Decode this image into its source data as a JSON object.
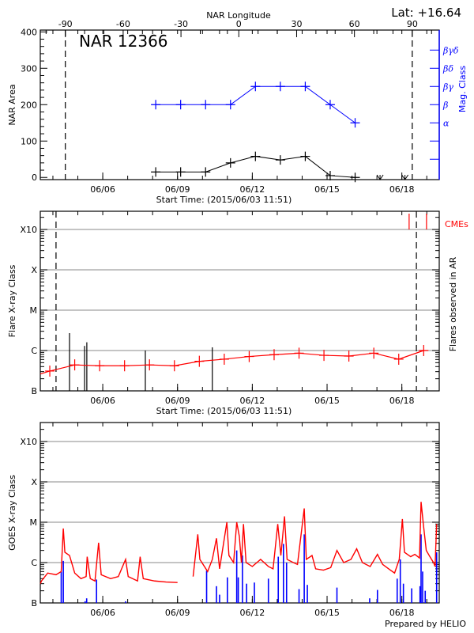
{
  "footer": "Prepared by HELIO",
  "colors": {
    "axis": "#000000",
    "mag_class": "#0000ff",
    "flare": "#ff0000",
    "goes_long": "#ff0000",
    "goes_short": "#0000ff",
    "grid": "#a0a0a0"
  },
  "chart_data": [
    {
      "type": "line",
      "title": "NAR 12366",
      "annotation": "Lat: +16.64",
      "xlabel": "Start Time: (2015/06/03 11:51)",
      "xlim": [
        "2015-06-03T11:51",
        "2015-06-19T12:00"
      ],
      "xticks": [
        {
          "date": "2015-06-06T00:00",
          "label": "06/06"
        },
        {
          "date": "2015-06-09T00:00",
          "label": "06/09"
        },
        {
          "date": "2015-06-12T00:00",
          "label": "06/12"
        },
        {
          "date": "2015-06-15T00:00",
          "label": "06/15"
        },
        {
          "date": "2015-06-18T00:00",
          "label": "06/18"
        }
      ],
      "top_xlabel": "NAR Longitude",
      "top_xlim": [
        -103,
        104
      ],
      "top_xticks": [
        "-90",
        "-60",
        "-30",
        "0",
        "30",
        "60",
        "90"
      ],
      "limb_longitudes": [
        -90,
        90
      ],
      "ylabel": "NAR Area",
      "ylim": [
        -6,
        405
      ],
      "yticks": [
        "0",
        "100",
        "200",
        "300",
        "400"
      ],
      "y2label": "Mag. Class",
      "y2ticks": [
        {
          "at": 50,
          "label": ""
        },
        {
          "at": 100,
          "label": ""
        },
        {
          "at": 150,
          "label": "α"
        },
        {
          "at": 200,
          "label": "β"
        },
        {
          "at": 250,
          "label": "βγ"
        },
        {
          "at": 300,
          "label": "βδ"
        },
        {
          "at": 350,
          "label": "βγδ"
        }
      ],
      "area": {
        "x": [
          "2015-06-08T03:00",
          "2015-06-09T03:00",
          "2015-06-10T03:00",
          "2015-06-11T03:00",
          "2015-06-12T03:00",
          "2015-06-13T03:00",
          "2015-06-14T03:00",
          "2015-06-15T03:00",
          "2015-06-16T03:00"
        ],
        "values": [
          15,
          15,
          15,
          40,
          58,
          48,
          58,
          5,
          0
        ],
        "no_data_markers": [
          "2015-06-17T03:00",
          "2015-06-18T03:00"
        ]
      },
      "mag_class": {
        "x": [
          "2015-06-08T03:00",
          "2015-06-09T03:00",
          "2015-06-10T03:00",
          "2015-06-11T03:00",
          "2015-06-12T03:00",
          "2015-06-13T03:00",
          "2015-06-14T03:00",
          "2015-06-15T03:00",
          "2015-06-16T03:00"
        ],
        "values": [
          "β",
          "β",
          "β",
          "β",
          "βγ",
          "βγ",
          "βγ",
          "β",
          "α"
        ]
      }
    },
    {
      "type": "line",
      "xlabel": "Start Time: (2015/06/03 11:51)",
      "xlim": [
        "2015-06-03T11:51",
        "2015-06-19T12:00"
      ],
      "xticks": [
        {
          "date": "2015-06-06T00:00",
          "label": "06/06"
        },
        {
          "date": "2015-06-09T00:00",
          "label": "06/09"
        },
        {
          "date": "2015-06-12T00:00",
          "label": "06/12"
        },
        {
          "date": "2015-06-15T00:00",
          "label": "06/15"
        },
        {
          "date": "2015-06-18T00:00",
          "label": "06/18"
        }
      ],
      "ylabel": "Flare X-ray Class",
      "y2label": "Flares observed in AR",
      "yscale": "log",
      "ylim": [
        "B1.0",
        "X29"
      ],
      "yticks": [
        "B",
        "C",
        "M",
        "X",
        "X10"
      ],
      "grid": true,
      "limb_dates": [
        "2015-06-04T03:00",
        "2015-06-18T14:00"
      ],
      "background_level": {
        "x": [
          "2015-06-03T21:00",
          "2015-06-04T21:00",
          "2015-06-05T21:00",
          "2015-06-06T21:00",
          "2015-06-07T21:00",
          "2015-06-08T21:00",
          "2015-06-09T21:00",
          "2015-06-10T21:00",
          "2015-06-11T21:00",
          "2015-06-12T21:00",
          "2015-06-13T21:00",
          "2015-06-14T21:00",
          "2015-06-15T21:00",
          "2015-06-16T21:00",
          "2015-06-17T21:00",
          "2015-06-18T21:00"
        ],
        "values": [
          "B3.1",
          "B4.4",
          "B4.2",
          "B4.2",
          "B4.4",
          "B4.2",
          "B5.4",
          "B6.1",
          "B7.1",
          "B7.9",
          "B8.6",
          "B7.6",
          "B7.3",
          "B8.6",
          "B6.1",
          "C1.0"
        ]
      },
      "flares": [
        {
          "date": "2015-06-04T16:00",
          "class": "C2.7"
        },
        {
          "date": "2015-06-05T06:30",
          "class": "C1.3"
        },
        {
          "date": "2015-06-05T08:40",
          "class": "C1.6"
        },
        {
          "date": "2015-06-07T17:00",
          "class": "C1.0"
        },
        {
          "date": "2015-06-10T09:30",
          "class": "C1.2"
        }
      ],
      "cme_label": "CMEs",
      "cmes": [
        "2015-06-18T07:00",
        "2015-06-18T23:45"
      ]
    },
    {
      "type": "line",
      "xlim": [
        "2015-06-03T11:51",
        "2015-06-19T12:00"
      ],
      "xticks": [
        {
          "date": "2015-06-06T00:00",
          "label": "06/06"
        },
        {
          "date": "2015-06-09T00:00",
          "label": "06/09"
        },
        {
          "date": "2015-06-12T00:00",
          "label": "06/12"
        },
        {
          "date": "2015-06-15T00:00",
          "label": "06/15"
        },
        {
          "date": "2015-06-18T00:00",
          "label": "06/18"
        }
      ],
      "ylabel": "GOES X-ray Class",
      "yscale": "log",
      "ylim": [
        "B1.0",
        "X29"
      ],
      "yticks": [
        "B",
        "C",
        "M",
        "X",
        "X10"
      ],
      "grid": true,
      "long_channel": [
        [
          "2015-06-03T12:00",
          "B3.0"
        ],
        [
          "2015-06-03T13:00",
          "B3.5"
        ],
        [
          "2015-06-03T19:00",
          "B5.5"
        ],
        [
          "2015-06-04T03:00",
          "B5.0"
        ],
        [
          "2015-06-04T08:00",
          "B6.0"
        ],
        [
          "2015-06-04T10:00",
          "C7.0"
        ],
        [
          "2015-06-04T11:30",
          "C1.8"
        ],
        [
          "2015-06-04T16:00",
          "C1.5"
        ],
        [
          "2015-06-04T21:00",
          "B5.5"
        ],
        [
          "2015-06-05T03:00",
          "B4.0"
        ],
        [
          "2015-06-05T08:00",
          "B4.5"
        ],
        [
          "2015-06-05T09:00",
          "C1.4"
        ],
        [
          "2015-06-05T12:00",
          "B4.0"
        ],
        [
          "2015-06-05T16:30",
          "B3.5"
        ],
        [
          "2015-06-05T20:00",
          "C3.1"
        ],
        [
          "2015-06-05T22:30",
          "B5.0"
        ],
        [
          "2015-06-06T07:30",
          "B4.0"
        ],
        [
          "2015-06-06T15:00",
          "B4.5"
        ],
        [
          "2015-06-06T22:00",
          "C1.2"
        ],
        [
          "2015-06-07T00:30",
          "B4.5"
        ],
        [
          "2015-06-07T09:30",
          "B3.5"
        ],
        [
          "2015-06-07T12:00",
          "C1.4"
        ],
        [
          "2015-06-07T15:00",
          "B4.0"
        ],
        [
          "2015-06-08T02:00",
          "B3.5"
        ],
        [
          "2015-06-08T13:00",
          "B3.3"
        ],
        [
          "2015-06-09T00:00",
          "B3.2"
        ],
        [
          "2015-06-09T07:00",
          null
        ],
        [
          "2015-06-09T15:00",
          "B4.5"
        ],
        [
          "2015-06-09T19:30",
          "C5.0"
        ],
        [
          "2015-06-09T21:30",
          "C1.2"
        ],
        [
          "2015-06-10T05:00",
          "B6.0"
        ],
        [
          "2015-06-10T09:30",
          "C1.2"
        ],
        [
          "2015-06-10T13:30",
          "C4.0"
        ],
        [
          "2015-06-10T16:30",
          "B7.0"
        ],
        [
          "2015-06-10T23:30",
          "M1.0"
        ],
        [
          "2015-06-11T01:30",
          "C1.5"
        ],
        [
          "2015-06-11T06:00",
          "C1.0"
        ],
        [
          "2015-06-11T09:00",
          "M1.0"
        ],
        [
          "2015-06-11T11:30",
          "C4.5"
        ],
        [
          "2015-06-11T13:30",
          "C1.0"
        ],
        [
          "2015-06-11T15:30",
          "C9.0"
        ],
        [
          "2015-06-11T18:00",
          "C1.0"
        ],
        [
          "2015-06-12T00:00",
          "B8.0"
        ],
        [
          "2015-06-12T08:00",
          "C1.2"
        ],
        [
          "2015-06-12T15:30",
          "B8.0"
        ],
        [
          "2015-06-12T20:00",
          "B7.0"
        ],
        [
          "2015-06-13T00:30",
          "C9.0"
        ],
        [
          "2015-06-13T03:30",
          "C1.5"
        ],
        [
          "2015-06-13T07:00",
          "M1.4"
        ],
        [
          "2015-06-13T09:30",
          "C1.2"
        ],
        [
          "2015-06-13T15:30",
          "C1.0"
        ],
        [
          "2015-06-13T19:30",
          "B9.0"
        ],
        [
          "2015-06-14T02:00",
          "M2.2"
        ],
        [
          "2015-06-14T04:00",
          "C1.2"
        ],
        [
          "2015-06-14T09:30",
          "C1.5"
        ],
        [
          "2015-06-14T13:00",
          "B7.0"
        ],
        [
          "2015-06-14T20:30",
          "B6.5"
        ],
        [
          "2015-06-15T03:30",
          "B7.5"
        ],
        [
          "2015-06-15T09:30",
          "C2.0"
        ],
        [
          "2015-06-15T16:00",
          "C1.0"
        ],
        [
          "2015-06-15T23:00",
          "C1.2"
        ],
        [
          "2015-06-16T04:30",
          "C2.2"
        ],
        [
          "2015-06-16T10:00",
          "C1.0"
        ],
        [
          "2015-06-16T17:30",
          "B8.0"
        ],
        [
          "2015-06-17T00:30",
          "C1.6"
        ],
        [
          "2015-06-17T05:30",
          "B9.0"
        ],
        [
          "2015-06-17T13:00",
          "B6.5"
        ],
        [
          "2015-06-17T17:00",
          "B5.5"
        ],
        [
          "2015-06-17T21:30",
          "C1.2"
        ],
        [
          "2015-06-18T00:30",
          "M1.2"
        ],
        [
          "2015-06-18T02:30",
          "C1.8"
        ],
        [
          "2015-06-18T08:30",
          "C1.4"
        ],
        [
          "2015-06-18T12:30",
          "C1.6"
        ],
        [
          "2015-06-18T17:00",
          "C1.3"
        ],
        [
          "2015-06-18T18:30",
          "M3.2"
        ],
        [
          "2015-06-18T20:30",
          "M1.0"
        ],
        [
          "2015-06-18T23:30",
          "C2.0"
        ],
        [
          "2015-06-19T03:00",
          "C1.4"
        ],
        [
          "2015-06-19T06:30",
          "C1.0"
        ],
        [
          "2015-06-19T08:00",
          "B8.0"
        ],
        [
          "2015-06-19T09:30",
          "C9.0"
        ]
      ],
      "short_channel": [
        [
          "2015-06-04T08:00",
          "B5.9"
        ],
        [
          "2015-06-04T10:00",
          "C1.1"
        ],
        [
          "2015-06-05T07:00",
          "B1.1"
        ],
        [
          "2015-06-05T08:30",
          "B1.3"
        ],
        [
          "2015-06-05T18:00",
          "B3.8"
        ],
        [
          "2015-06-06T22:00",
          "B1.1"
        ],
        [
          "2015-06-10T04:00",
          "B6.3"
        ],
        [
          "2015-06-10T13:30",
          "B2.6"
        ],
        [
          "2015-06-10T16:30",
          "B1.6"
        ],
        [
          "2015-06-11T00:00",
          "B4.3"
        ],
        [
          "2015-06-11T09:00",
          "C2.0"
        ],
        [
          "2015-06-11T10:30",
          "B4.3"
        ],
        [
          "2015-06-11T14:30",
          "C1.5"
        ],
        [
          "2015-06-11T18:30",
          "B3.0"
        ],
        [
          "2015-06-12T02:00",
          "B3.2"
        ],
        [
          "2015-06-12T15:30",
          "B4.0"
        ],
        [
          "2015-06-13T01:00",
          "C1.4"
        ],
        [
          "2015-06-13T06:00",
          "C2.9"
        ],
        [
          "2015-06-13T09:00",
          "C1.0"
        ],
        [
          "2015-06-13T21:00",
          "B2.2"
        ],
        [
          "2015-06-14T02:00",
          "C5.0"
        ],
        [
          "2015-06-14T05:00",
          "B2.8"
        ],
        [
          "2015-06-15T09:30",
          "B2.4"
        ],
        [
          "2015-06-16T17:00",
          "B1.3"
        ],
        [
          "2015-06-17T00:30",
          "B2.1"
        ],
        [
          "2015-06-17T19:30",
          "B4.0"
        ],
        [
          "2015-06-17T22:30",
          "C1.2"
        ],
        [
          "2015-06-18T01:30",
          "B3.0"
        ],
        [
          "2015-06-18T09:30",
          "B2.3"
        ],
        [
          "2015-06-18T17:30",
          "B2.6"
        ],
        [
          "2015-06-18T18:30",
          "C5.0"
        ],
        [
          "2015-06-18T20:00",
          "B6.0"
        ],
        [
          "2015-06-18T22:30",
          "B2.0"
        ],
        [
          "2015-06-19T09:30",
          "C1.8"
        ]
      ]
    }
  ]
}
